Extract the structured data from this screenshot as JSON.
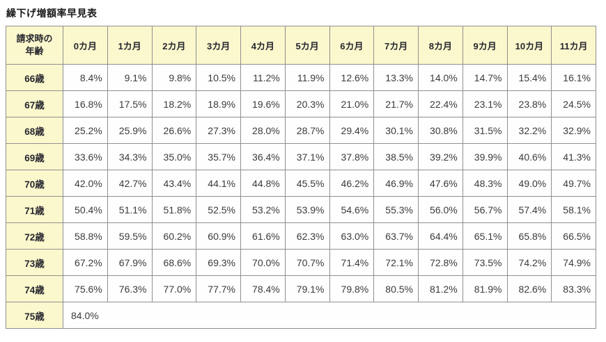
{
  "title": "繰下げ増額率早見表",
  "table": {
    "corner_header": "請求時の\n年齢",
    "month_headers": [
      "0カ月",
      "1カ月",
      "2カ月",
      "3カ月",
      "4カ月",
      "5カ月",
      "6カ月",
      "7カ月",
      "8カ月",
      "9カ月",
      "10カ月",
      "11カ月"
    ],
    "rows": [
      {
        "age": "66歳",
        "values": [
          "8.4%",
          "9.1%",
          "9.8%",
          "10.5%",
          "11.2%",
          "11.9%",
          "12.6%",
          "13.3%",
          "14.0%",
          "14.7%",
          "15.4%",
          "16.1%"
        ]
      },
      {
        "age": "67歳",
        "values": [
          "16.8%",
          "17.5%",
          "18.2%",
          "18.9%",
          "19.6%",
          "20.3%",
          "21.0%",
          "21.7%",
          "22.4%",
          "23.1%",
          "23.8%",
          "24.5%"
        ]
      },
      {
        "age": "68歳",
        "values": [
          "25.2%",
          "25.9%",
          "26.6%",
          "27.3%",
          "28.0%",
          "28.7%",
          "29.4%",
          "30.1%",
          "30.8%",
          "31.5%",
          "32.2%",
          "32.9%"
        ]
      },
      {
        "age": "69歳",
        "values": [
          "33.6%",
          "34.3%",
          "35.0%",
          "35.7%",
          "36.4%",
          "37.1%",
          "37.8%",
          "38.5%",
          "39.2%",
          "39.9%",
          "40.6%",
          "41.3%"
        ]
      },
      {
        "age": "70歳",
        "values": [
          "42.0%",
          "42.7%",
          "43.4%",
          "44.1%",
          "44.8%",
          "45.5%",
          "46.2%",
          "46.9%",
          "47.6%",
          "48.3%",
          "49.0%",
          "49.7%"
        ]
      },
      {
        "age": "71歳",
        "values": [
          "50.4%",
          "51.1%",
          "51.8%",
          "52.5%",
          "53.2%",
          "53.9%",
          "54.6%",
          "55.3%",
          "56.0%",
          "56.7%",
          "57.4%",
          "58.1%"
        ]
      },
      {
        "age": "72歳",
        "values": [
          "58.8%",
          "59.5%",
          "60.2%",
          "60.9%",
          "61.6%",
          "62.3%",
          "63.0%",
          "63.7%",
          "64.4%",
          "65.1%",
          "65.8%",
          "66.5%"
        ]
      },
      {
        "age": "73歳",
        "values": [
          "67.2%",
          "67.9%",
          "68.6%",
          "69.3%",
          "70.0%",
          "70.7%",
          "71.4%",
          "72.1%",
          "72.8%",
          "73.5%",
          "74.2%",
          "74.9%"
        ]
      },
      {
        "age": "74歳",
        "values": [
          "75.6%",
          "76.3%",
          "77.0%",
          "77.7%",
          "78.4%",
          "79.1%",
          "79.8%",
          "80.5%",
          "81.2%",
          "81.9%",
          "82.6%",
          "83.3%"
        ]
      },
      {
        "age": "75歳",
        "values": [
          "84.0%"
        ]
      }
    ]
  },
  "colors": {
    "header_background": "#fbf8cd",
    "cell_background": "#fefefe",
    "border": "#8f8f8f",
    "header_text": "#26262e",
    "value_text": "#3a3a3a",
    "title_text": "#1a1a1a"
  }
}
